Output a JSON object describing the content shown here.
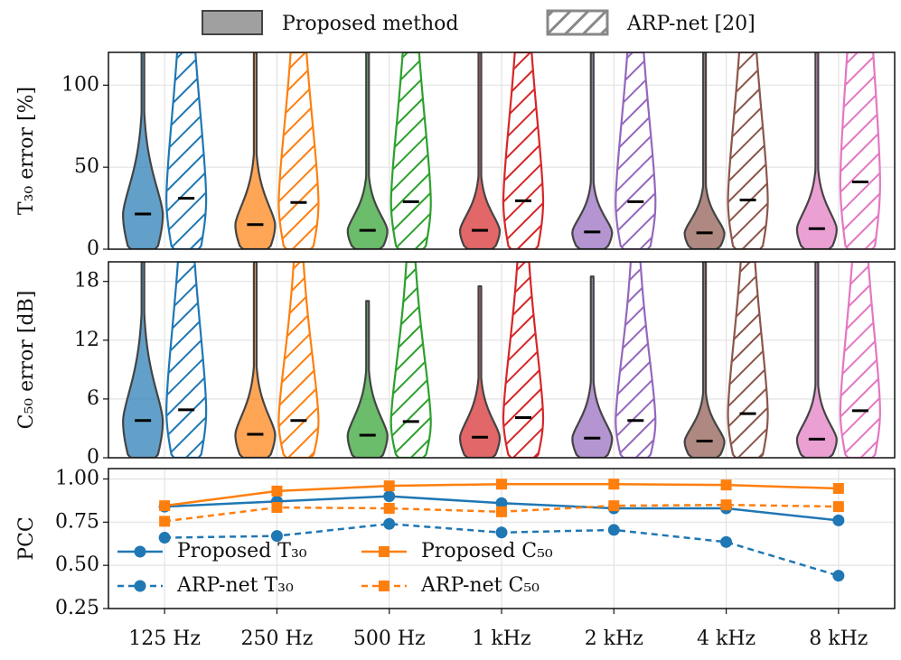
{
  "chart_data": [
    {
      "type": "violin",
      "ylabel": "T₃₀ error [%]",
      "ylim": [
        0,
        120
      ],
      "yticks": [
        0,
        50,
        100
      ],
      "grid": true,
      "colors": [
        "#1f77b4",
        "#ff7f0e",
        "#2ca02c",
        "#d62728",
        "#9467bd",
        "#8c564b",
        "#e377c2"
      ],
      "series": [
        {
          "name": "Proposed method",
          "style": "filled",
          "values": [
            21.5,
            15,
            11.5,
            11.5,
            10.5,
            10,
            12.5
          ],
          "max": [
            120,
            120,
            120,
            120,
            120,
            120,
            120
          ]
        },
        {
          "name": "ARP-net [20]",
          "style": "hatched",
          "values": [
            31,
            28.5,
            29,
            29.5,
            29,
            30,
            41
          ],
          "max": [
            120,
            120,
            120,
            120,
            120,
            120,
            120
          ]
        }
      ]
    },
    {
      "type": "violin",
      "ylabel": "C₅₀ error [dB]",
      "ylim": [
        0,
        20
      ],
      "yticks": [
        0,
        6,
        12,
        18
      ],
      "grid": true,
      "colors": [
        "#1f77b4",
        "#ff7f0e",
        "#2ca02c",
        "#d62728",
        "#9467bd",
        "#8c564b",
        "#e377c2"
      ],
      "series": [
        {
          "name": "Proposed method",
          "style": "filled",
          "values": [
            3.8,
            2.4,
            2.3,
            2.1,
            2.0,
            1.7,
            1.9
          ],
          "max": [
            20,
            20,
            16,
            17.5,
            18.5,
            20,
            20
          ]
        },
        {
          "name": "ARP-net [20]",
          "style": "hatched",
          "values": [
            4.9,
            3.8,
            3.7,
            4.1,
            3.8,
            4.5,
            4.8
          ],
          "max": [
            20,
            20,
            20,
            20,
            20,
            20,
            20
          ]
        }
      ]
    },
    {
      "type": "line",
      "ylabel": "PCC",
      "ylim": [
        0.25,
        1.06
      ],
      "yticks": [
        0.25,
        {
          "value": 0.5,
          "label": "0.50"
        },
        0.75,
        {
          "value": 1.0,
          "label": "1.00"
        }
      ],
      "grid": true,
      "categories": [
        "125 Hz",
        "250 Hz",
        "500 Hz",
        "1 kHz",
        "2 kHz",
        "4 kHz",
        "8 kHz"
      ],
      "legend": "lower left",
      "series": [
        {
          "name": "Proposed T₃₀",
          "color": "#1f77b4",
          "dash": false,
          "marker": "circle",
          "values": [
            0.84,
            0.87,
            0.9,
            0.86,
            0.83,
            0.83,
            0.76
          ]
        },
        {
          "name": "ARP-net T₃₀",
          "color": "#1f77b4",
          "dash": true,
          "marker": "circle",
          "values": [
            0.66,
            0.67,
            0.74,
            0.69,
            0.705,
            0.635,
            0.44
          ]
        },
        {
          "name": "Proposed C₅₀",
          "color": "#ff7f0e",
          "dash": false,
          "marker": "square",
          "values": [
            0.845,
            0.93,
            0.96,
            0.97,
            0.97,
            0.965,
            0.945
          ]
        },
        {
          "name": "ARP-net C₅₀",
          "color": "#ff7f0e",
          "dash": true,
          "marker": "square",
          "values": [
            0.755,
            0.835,
            0.83,
            0.81,
            0.845,
            0.85,
            0.84
          ]
        }
      ]
    }
  ]
}
